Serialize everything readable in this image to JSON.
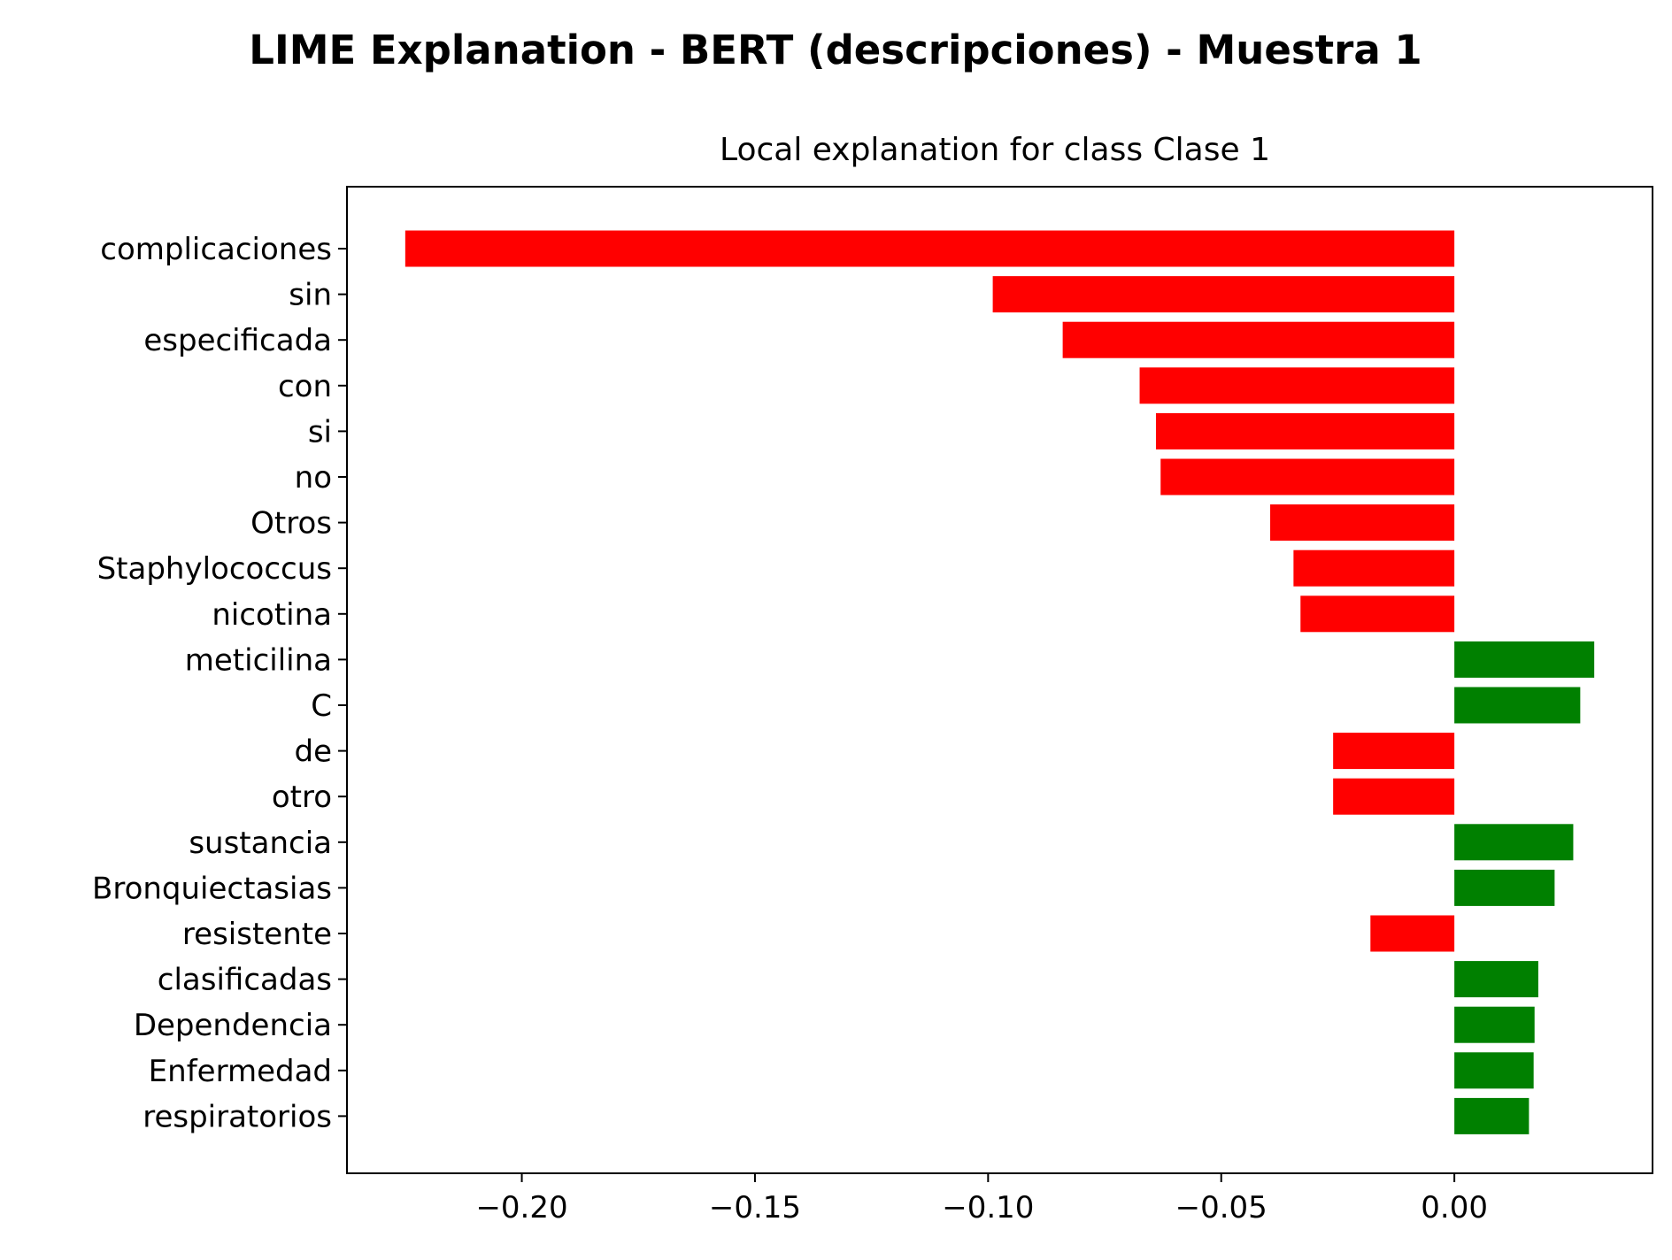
{
  "figure": {
    "suptitle": "LIME Explanation - BERT (descripciones) - Muestra 1"
  },
  "chart_data": {
    "type": "bar",
    "orientation": "horizontal",
    "title": "Local explanation for class Clase 1",
    "xlabel": "",
    "ylabel": "",
    "xlim": [
      -0.2375,
      0.0425
    ],
    "xticks": [
      -0.2,
      -0.15,
      -0.1,
      -0.05,
      0.0
    ],
    "xtick_labels": [
      "−0.20",
      "−0.15",
      "−0.10",
      "−0.05",
      "0.00"
    ],
    "grid": false,
    "legend": "none",
    "colors": {
      "positive": "#008000",
      "negative": "#ff0000"
    },
    "categories": [
      "complicaciones",
      "sin",
      "especificada",
      "con",
      "si",
      "no",
      "Otros",
      "Staphylococcus",
      "nicotina",
      "meticilina",
      "C",
      "de",
      "otro",
      "sustancia",
      "Bronquiectasias",
      "resistente",
      "clasificadas",
      "Dependencia",
      "Enfermedad",
      "respiratorios"
    ],
    "values": [
      -0.225,
      -0.099,
      -0.084,
      -0.0675,
      -0.064,
      -0.063,
      -0.0395,
      -0.0345,
      -0.033,
      0.03,
      0.027,
      -0.026,
      -0.026,
      0.0255,
      0.0215,
      -0.018,
      0.018,
      0.0172,
      0.017,
      0.016
    ]
  }
}
